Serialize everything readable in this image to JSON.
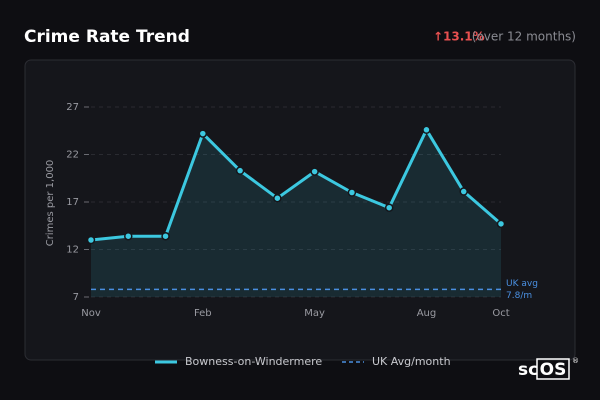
{
  "chart_data": {
    "type": "line",
    "title": "Crime Rate Trend",
    "change": {
      "arrow": "↑",
      "value": 13.1,
      "value_label": "13.1%",
      "note": "(over 12 months)"
    },
    "y_label": "Crimes per 1,000",
    "categories": [
      "Nov",
      null,
      null,
      "Feb",
      null,
      null,
      "May",
      null,
      null,
      "Aug",
      null,
      "Oct"
    ],
    "series": [
      {
        "name": "Bowness-on-Windermere",
        "color": "#3cc8e0",
        "values": [
          13.0,
          13.4,
          13.4,
          24.2,
          20.3,
          17.4,
          20.2,
          18.0,
          16.4,
          24.6,
          18.1,
          14.7
        ]
      }
    ],
    "reference": {
      "name": "UK Avg/month",
      "value": 7.8,
      "label": "UK avg",
      "value_label": "7.8/m",
      "color": "#4a8fe0"
    },
    "ylim": [
      7,
      27
    ],
    "yticks": [
      7,
      12,
      17,
      22,
      27
    ],
    "grid": true,
    "logo": {
      "left": "sc",
      "boxed": "OS",
      "mark": "®"
    }
  }
}
